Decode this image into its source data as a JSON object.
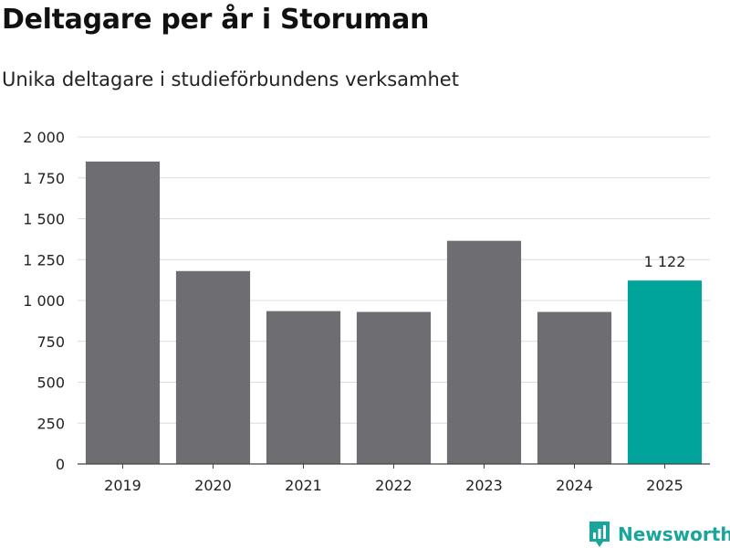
{
  "header": {
    "title": "Deltagare per år i Storuman",
    "subtitle": "Unika deltagare i studieförbundens verksamhet"
  },
  "brand": {
    "name": "Newsworthy",
    "icon": "newsworthy-logo-icon",
    "color": "#1aa59b"
  },
  "chart_data": {
    "type": "bar",
    "title": "Deltagare per år i Storuman",
    "subtitle": "Unika deltagare i studieförbundens verksamhet",
    "xlabel": "",
    "ylabel": "",
    "categories": [
      "2019",
      "2020",
      "2021",
      "2022",
      "2023",
      "2024",
      "2025"
    ],
    "values": [
      1850,
      1180,
      935,
      930,
      1365,
      930,
      1122
    ],
    "data_labels": {
      "2025": "1 122"
    },
    "colors": {
      "default": "#6e6d72",
      "highlight": "#00a49b"
    },
    "highlight_category": "2025",
    "ylim": [
      0,
      2000
    ],
    "yticks": [
      0,
      250,
      500,
      750,
      1000,
      1250,
      1500,
      1750,
      2000
    ],
    "ytick_labels": [
      "0",
      "250",
      "500",
      "750",
      "1 000",
      "1 250",
      "1 500",
      "1 750",
      "2 000"
    ],
    "grid": true,
    "legend": "none"
  }
}
